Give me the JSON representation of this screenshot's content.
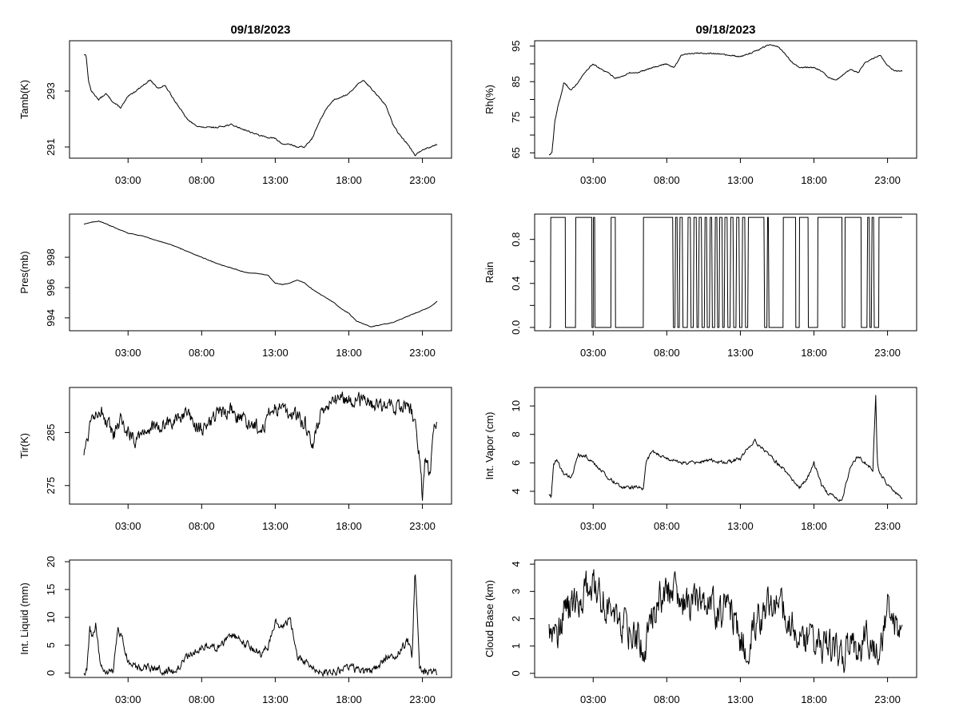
{
  "figure": {
    "background": "#ffffff",
    "line_color": "#000000"
  },
  "chart_data": [
    {
      "type": "line",
      "title": "09/18/2023",
      "ylabel": "Tamb(K)",
      "xlabel": "",
      "xlim": [
        0,
        24
      ],
      "ylim": [
        290.6,
        294.8
      ],
      "yticks": [
        291,
        293
      ],
      "xticks": [
        3,
        8,
        13,
        18,
        23
      ],
      "xtick_labels": [
        "03:00",
        "08:00",
        "13:00",
        "18:00",
        "23:00"
      ],
      "noise": 0.04,
      "series": [
        {
          "x": [
            0,
            0.15,
            0.3,
            0.5,
            1.0,
            1.5,
            2.0,
            2.5,
            3.0,
            3.5,
            4.0,
            4.5,
            5.0,
            5.5,
            6.0,
            6.5,
            7.0,
            7.5,
            8.0,
            9.0,
            10.0,
            11.0,
            12.0,
            13.0,
            13.5,
            14.0,
            14.5,
            15.0,
            15.5,
            16.0,
            16.5,
            17.0,
            17.5,
            18.0,
            18.5,
            19.0,
            19.5,
            20.0,
            20.5,
            21.0,
            21.5,
            22.0,
            22.5,
            23.0,
            23.5,
            24.0
          ],
          "y": [
            294.3,
            294.3,
            293.4,
            293.0,
            292.7,
            292.9,
            292.6,
            292.4,
            292.8,
            293.0,
            293.2,
            293.4,
            293.1,
            293.2,
            292.8,
            292.4,
            292.0,
            291.8,
            291.7,
            291.7,
            291.8,
            291.6,
            291.4,
            291.3,
            291.1,
            291.1,
            291.0,
            291.0,
            291.3,
            291.9,
            292.4,
            292.7,
            292.8,
            292.9,
            293.2,
            293.4,
            293.1,
            292.8,
            292.5,
            291.8,
            291.4,
            291.1,
            290.7,
            290.9,
            291.0,
            291.1
          ]
        }
      ]
    },
    {
      "type": "line",
      "title": "09/18/2023",
      "ylabel": "Rh(%)",
      "xlabel": "",
      "xlim": [
        0,
        24
      ],
      "ylim": [
        63.5,
        96.5
      ],
      "yticks": [
        65,
        70,
        75,
        80,
        85,
        90,
        95
      ],
      "ytick_labels": [
        "65",
        "",
        "75",
        "",
        "85",
        "",
        "95"
      ],
      "xticks": [
        3,
        8,
        13,
        18,
        23
      ],
      "xtick_labels": [
        "03:00",
        "08:00",
        "13:00",
        "18:00",
        "23:00"
      ],
      "noise": 0.3,
      "series": [
        {
          "x": [
            0,
            0.2,
            0.4,
            0.6,
            0.8,
            1.0,
            1.2,
            1.5,
            2.0,
            2.5,
            3.0,
            3.5,
            4.0,
            4.5,
            5.0,
            5.5,
            6.0,
            7.0,
            8.0,
            8.5,
            9.0,
            10.0,
            11.0,
            12.0,
            13.0,
            14.0,
            15.0,
            15.5,
            16.0,
            16.5,
            17.0,
            18.0,
            18.5,
            19.0,
            19.5,
            20.0,
            20.5,
            21.0,
            21.5,
            22.0,
            22.5,
            23.0,
            23.5,
            24.0
          ],
          "y": [
            64.5,
            65.0,
            74.0,
            78.0,
            81.0,
            84.5,
            84.0,
            82.5,
            85.0,
            88.0,
            90.0,
            88.5,
            87.5,
            86.0,
            86.5,
            87.5,
            87.5,
            89.0,
            90.0,
            89.0,
            92.5,
            93.0,
            93.0,
            92.5,
            92.0,
            93.5,
            95.5,
            95.0,
            93.0,
            90.5,
            89.0,
            89.0,
            88.0,
            86.0,
            85.5,
            87.0,
            88.5,
            87.5,
            90.5,
            91.5,
            92.5,
            89.5,
            88.0,
            88.0
          ]
        }
      ]
    },
    {
      "type": "line",
      "title": "",
      "ylabel": "Pres(mb)",
      "xlabel": "",
      "xlim": [
        0,
        24
      ],
      "ylim": [
        993.15,
        1000.85
      ],
      "yticks": [
        994,
        996,
        998
      ],
      "xticks": [
        3,
        8,
        13,
        18,
        23
      ],
      "xtick_labels": [
        "03:00",
        "08:00",
        "13:00",
        "18:00",
        "23:00"
      ],
      "noise": 0.03,
      "series": [
        {
          "x": [
            0,
            0.5,
            1.0,
            2.0,
            3.0,
            4.0,
            5.0,
            6.0,
            7.0,
            8.0,
            9.0,
            10.0,
            11.0,
            12.0,
            12.5,
            13.0,
            13.5,
            14.0,
            14.5,
            15.0,
            15.5,
            16.0,
            16.5,
            17.0,
            17.5,
            18.0,
            18.5,
            19.0,
            19.5,
            20.0,
            20.5,
            21.0,
            21.5,
            22.0,
            22.5,
            23.0,
            23.5,
            24.0
          ],
          "y": [
            1000.2,
            1000.3,
            1000.4,
            1000.0,
            999.6,
            999.4,
            999.1,
            998.8,
            998.4,
            998.0,
            997.6,
            997.3,
            997.0,
            996.9,
            996.8,
            996.3,
            996.2,
            996.3,
            996.5,
            996.3,
            995.9,
            995.6,
            995.3,
            995.0,
            994.6,
            994.3,
            993.8,
            993.6,
            993.4,
            993.5,
            993.6,
            993.7,
            993.9,
            994.1,
            994.3,
            994.5,
            994.7,
            995.1
          ]
        }
      ]
    },
    {
      "type": "line",
      "title": "",
      "ylabel": "Rain",
      "xlabel": "",
      "xlim": [
        0,
        24
      ],
      "ylim": [
        -0.03,
        1.03
      ],
      "yticks": [
        0.0,
        0.2,
        0.4,
        0.6,
        0.8
      ],
      "ytick_labels": [
        "0.0",
        "",
        "0.4",
        "",
        "0.8"
      ],
      "xticks": [
        3,
        8,
        13,
        18,
        23
      ],
      "xtick_labels": [
        "03:00",
        "08:00",
        "13:00",
        "18:00",
        "23:00"
      ],
      "step": true,
      "series": [
        {
          "x": [
            0,
            0.1,
            0.12,
            1.1,
            1.12,
            1.8,
            1.82,
            2.9,
            2.92,
            3.0,
            3.02,
            3.1,
            3.12,
            4.2,
            4.22,
            4.5,
            4.52,
            6.4,
            6.42,
            8.4,
            8.45,
            8.55,
            8.6,
            8.7,
            8.75,
            8.85,
            8.9,
            9.05,
            9.1,
            9.4,
            9.45,
            9.6,
            9.65,
            9.8,
            9.85,
            10.0,
            10.05,
            10.15,
            10.2,
            10.35,
            10.4,
            10.55,
            10.6,
            10.7,
            10.75,
            10.9,
            10.95,
            11.05,
            11.1,
            11.25,
            11.3,
            11.4,
            11.45,
            11.55,
            11.6,
            11.75,
            11.8,
            11.9,
            11.95,
            12.1,
            12.15,
            12.3,
            12.35,
            12.5,
            12.55,
            12.7,
            12.75,
            12.9,
            12.95,
            13.1,
            13.15,
            13.3,
            13.35,
            13.5,
            13.55,
            14.6,
            14.65,
            14.8,
            14.85,
            14.9,
            14.95,
            15.9,
            15.92,
            16.75,
            16.77,
            17.0,
            17.02,
            17.6,
            17.62,
            18.25,
            18.27,
            19.9,
            19.92,
            20.1,
            20.12,
            21.2,
            21.22,
            21.6,
            21.65,
            21.75,
            21.8,
            21.9,
            21.95,
            22.05,
            22.1,
            22.4,
            22.42,
            24.0
          ],
          "y": [
            0,
            0,
            1,
            1,
            0,
            0,
            1,
            1,
            0,
            0,
            1,
            1,
            0,
            0,
            1,
            1,
            0,
            0,
            1,
            1,
            0,
            0,
            1,
            1,
            0,
            0,
            1,
            1,
            0,
            0,
            1,
            1,
            0,
            0,
            1,
            1,
            0,
            0,
            1,
            1,
            0,
            0,
            1,
            1,
            0,
            0,
            1,
            1,
            0,
            0,
            1,
            1,
            0,
            0,
            1,
            1,
            0,
            0,
            1,
            1,
            0,
            0,
            1,
            1,
            0,
            0,
            1,
            1,
            0,
            0,
            1,
            1,
            0,
            0,
            1,
            1,
            0,
            0,
            1,
            1,
            0,
            0,
            1,
            1,
            0,
            0,
            1,
            1,
            0,
            0,
            1,
            1,
            0,
            0,
            1,
            1,
            0,
            0,
            1,
            1,
            0,
            0,
            1,
            1,
            0,
            0,
            1,
            1
          ]
        }
      ]
    },
    {
      "type": "line",
      "title": "",
      "ylabel": "Tir(K)",
      "xlabel": "",
      "xlim": [
        0,
        24
      ],
      "ylim": [
        271.5,
        293.5
      ],
      "yticks": [
        275,
        285
      ],
      "xticks": [
        3,
        8,
        13,
        18,
        23
      ],
      "xtick_labels": [
        "03:00",
        "08:00",
        "13:00",
        "18:00",
        "23:00"
      ],
      "noise": 2.5,
      "series": [
        {
          "x": [
            0,
            0.5,
            1.0,
            1.5,
            2.0,
            2.5,
            3.0,
            3.5,
            4.0,
            5.0,
            6.0,
            7.0,
            8.0,
            9.0,
            10.0,
            11.0,
            12.0,
            12.5,
            13.0,
            14.0,
            15.0,
            15.5,
            16.0,
            17.0,
            18.0,
            19.0,
            20.0,
            21.0,
            22.0,
            22.5,
            22.8,
            23.0,
            23.2,
            23.5,
            23.8,
            24.0
          ],
          "y": [
            281.0,
            288.0,
            290.0,
            287.0,
            284.0,
            287.0,
            285.0,
            284.0,
            285.5,
            286.0,
            287.0,
            288.0,
            285.5,
            288.0,
            289.0,
            287.0,
            286.0,
            288.0,
            290.0,
            289.0,
            287.0,
            282.0,
            288.0,
            291.0,
            291.0,
            291.0,
            290.0,
            290.0,
            290.0,
            288.0,
            281.0,
            273.0,
            280.0,
            277.0,
            285.0,
            287.0
          ]
        }
      ]
    },
    {
      "type": "line",
      "title": "",
      "ylabel": "Int. Vapor (cm)",
      "xlabel": "",
      "xlim": [
        0,
        24
      ],
      "ylim": [
        3.1,
        11.3
      ],
      "yticks": [
        4,
        6,
        8,
        10
      ],
      "xticks": [
        3,
        8,
        13,
        18,
        23
      ],
      "xtick_labels": [
        "03:00",
        "08:00",
        "13:00",
        "18:00",
        "23:00"
      ],
      "noise": 0.2,
      "series": [
        {
          "x": [
            0,
            0.15,
            0.3,
            0.5,
            1.0,
            1.5,
            2.0,
            2.5,
            3.0,
            3.5,
            4.0,
            4.5,
            5.0,
            6.0,
            6.4,
            6.6,
            7.0,
            7.5,
            8.0,
            9.0,
            10.0,
            11.0,
            12.0,
            13.0,
            13.5,
            14.0,
            14.5,
            15.0,
            15.5,
            16.0,
            16.5,
            17.0,
            17.5,
            18.0,
            18.5,
            19.0,
            19.5,
            19.9,
            20.5,
            21.0,
            21.5,
            22.0,
            22.2,
            22.3,
            22.5,
            23.0,
            23.5,
            24.0
          ],
          "y": [
            3.8,
            3.6,
            5.8,
            6.2,
            5.2,
            5.0,
            6.5,
            6.5,
            6.0,
            5.5,
            5.0,
            4.6,
            4.3,
            4.3,
            4.2,
            6.0,
            6.8,
            6.5,
            6.3,
            6.0,
            6.0,
            6.2,
            6.0,
            6.3,
            7.0,
            7.5,
            7.0,
            6.5,
            6.0,
            5.5,
            4.8,
            4.2,
            4.8,
            6.0,
            4.5,
            3.8,
            3.5,
            3.4,
            5.8,
            6.5,
            6.0,
            5.5,
            10.8,
            6.0,
            5.2,
            4.5,
            4.0,
            3.5
          ]
        }
      ]
    },
    {
      "type": "line",
      "title": "",
      "ylabel": "Int. Liquid (mm)",
      "xlabel": "",
      "xlim": [
        0,
        24
      ],
      "ylim": [
        -0.8,
        20.3
      ],
      "yticks": [
        0,
        5,
        10,
        15,
        20
      ],
      "xticks": [
        3,
        8,
        13,
        18,
        23
      ],
      "xtick_labels": [
        "03:00",
        "08:00",
        "13:00",
        "18:00",
        "23:00"
      ],
      "noise": 1.2,
      "series": [
        {
          "x": [
            0,
            0.2,
            0.4,
            0.6,
            0.8,
            1.0,
            1.2,
            1.5,
            2.0,
            2.3,
            2.6,
            3.0,
            3.5,
            4.0,
            4.5,
            5.0,
            6.0,
            6.5,
            7.0,
            7.5,
            8.0,
            8.5,
            9.0,
            9.5,
            10.0,
            10.5,
            11.0,
            11.5,
            12.0,
            12.5,
            13.0,
            13.5,
            14.0,
            14.5,
            15.0,
            15.5,
            16.0,
            17.0,
            17.5,
            18.0,
            18.5,
            19.0,
            19.5,
            20.0,
            20.5,
            21.0,
            21.5,
            22.0,
            22.3,
            22.5,
            22.8,
            23.0,
            23.5,
            24.0
          ],
          "y": [
            0,
            0.3,
            8.0,
            6.0,
            9.0,
            4.0,
            1.0,
            0.2,
            0.3,
            8.0,
            6.0,
            2.0,
            1.0,
            0.6,
            1.2,
            0.6,
            0.5,
            1.0,
            3.0,
            4.0,
            4.5,
            5.0,
            4.0,
            5.5,
            7.0,
            6.0,
            5.0,
            4.5,
            3.5,
            4.5,
            9.0,
            8.0,
            10.0,
            3.0,
            2.0,
            1.0,
            0.4,
            0.3,
            0.5,
            1.5,
            0.5,
            0.3,
            0.3,
            1.0,
            3.0,
            2.5,
            4.0,
            6.0,
            3.0,
            19.0,
            1.0,
            0.2,
            0.1,
            0.1
          ]
        }
      ]
    },
    {
      "type": "line",
      "title": "",
      "ylabel": "Cloud Base (km)",
      "xlabel": "",
      "xlim": [
        0,
        24
      ],
      "ylim": [
        -0.15,
        4.15
      ],
      "yticks": [
        0,
        1,
        2,
        3,
        4
      ],
      "xticks": [
        3,
        8,
        13,
        18,
        23
      ],
      "xtick_labels": [
        "03:00",
        "08:00",
        "13:00",
        "18:00",
        "23:00"
      ],
      "noise": 1.1,
      "series": [
        {
          "x": [
            0,
            0.5,
            1.0,
            1.5,
            2.0,
            2.5,
            3.0,
            3.5,
            4.0,
            4.5,
            5.0,
            5.5,
            6.0,
            6.5,
            7.0,
            7.5,
            8.0,
            8.5,
            9.0,
            9.5,
            10.0,
            10.5,
            11.0,
            11.5,
            12.0,
            12.5,
            13.0,
            13.5,
            14.0,
            14.5,
            15.0,
            15.5,
            16.0,
            16.5,
            17.0,
            17.5,
            18.0,
            18.5,
            19.0,
            19.5,
            20.0,
            20.5,
            21.0,
            21.5,
            22.0,
            22.5,
            23.0,
            23.5,
            24.0
          ],
          "y": [
            1.8,
            1.5,
            2.2,
            2.3,
            2.5,
            3.0,
            3.2,
            2.8,
            2.5,
            2.0,
            1.8,
            1.5,
            1.2,
            1.0,
            2.0,
            2.8,
            3.2,
            2.8,
            2.6,
            2.5,
            2.8,
            2.7,
            2.5,
            2.2,
            2.4,
            2.2,
            1.2,
            1.0,
            2.0,
            2.2,
            2.5,
            2.8,
            2.2,
            1.8,
            1.4,
            1.2,
            1.2,
            0.9,
            1.0,
            0.8,
            0.6,
            1.0,
            0.8,
            1.2,
            1.0,
            0.8,
            2.5,
            2.0,
            1.3
          ]
        }
      ]
    }
  ]
}
